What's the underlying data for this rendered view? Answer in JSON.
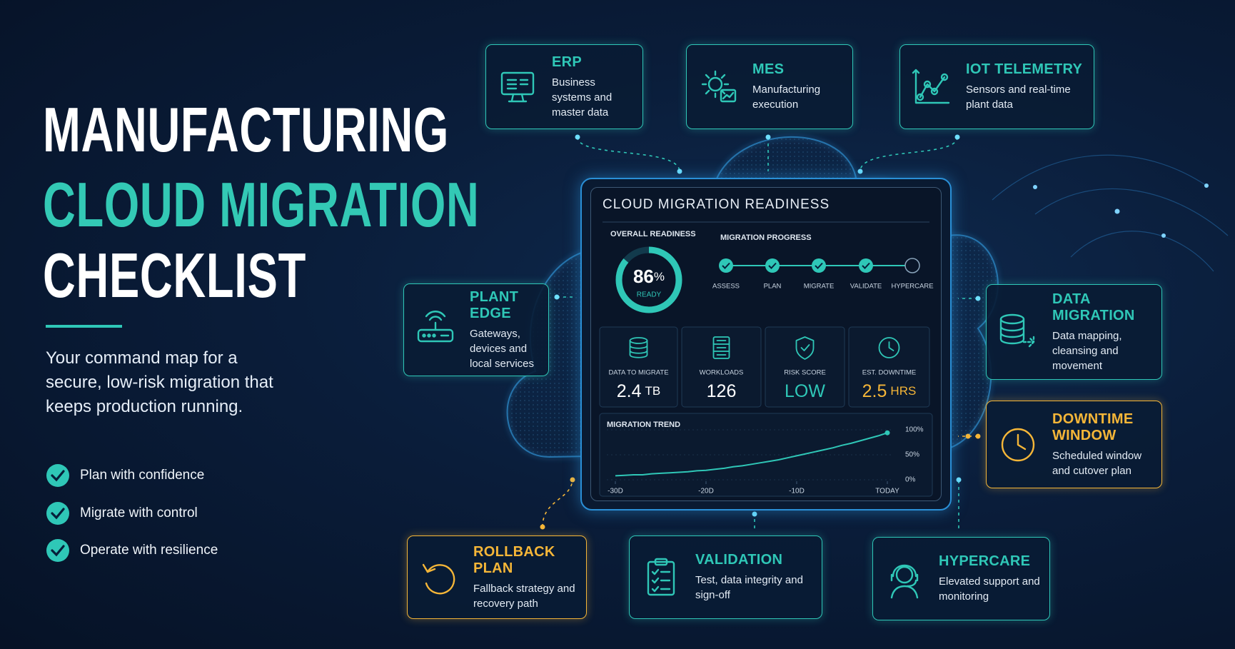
{
  "header": {
    "title_lines": [
      "MANUFACTURING",
      "CLOUD MIGRATION",
      "CHECKLIST"
    ],
    "subtitle": "Your command map for a secure, low-risk migration that keeps production running.",
    "checklist": [
      "Plan with confidence",
      "Migrate with control",
      "Operate with resilience"
    ]
  },
  "cards": [
    {
      "title": "ERP",
      "text": "Business systems and master data",
      "color": "#2fc7b7"
    },
    {
      "title": "MES",
      "text": "Manufacturing execution",
      "color": "#2fc7b7"
    },
    {
      "title": "IOT TELEMETRY",
      "text": "Sensors and real-time plant data",
      "color": "#2fc7b7"
    },
    {
      "title": "PLANT EDGE",
      "text": "Gateways, devices and local services",
      "color": "#2fc7b7"
    },
    {
      "title": "DATA MIGRATION",
      "text": "Data mapping, cleansing and movement",
      "color": "#2fc7b7"
    },
    {
      "title": "DOWNTIME WINDOW",
      "text": "Scheduled window and cutover plan",
      "color": "#f5b638"
    },
    {
      "title": "ROLLBACK PLAN",
      "text": "Fallback strategy and recovery path",
      "color": "#f5b638"
    },
    {
      "title": "VALIDATION",
      "text": "Test, data integrity and sign-off",
      "color": "#2fc7b7"
    },
    {
      "title": "HYPERCARE",
      "text": "Elevated support and monitoring",
      "color": "#2fc7b7"
    }
  ],
  "dashboard": {
    "title": "CLOUD MIGRATION READINESS",
    "readiness": {
      "label": "OVERALL READINESS",
      "value": 86,
      "unit": "%",
      "status": "READY"
    },
    "progress": {
      "label": "MIGRATION PROGRESS",
      "steps": [
        {
          "label": "ASSESS",
          "done": true
        },
        {
          "label": "PLAN",
          "done": true
        },
        {
          "label": "MIGRATE",
          "done": true
        },
        {
          "label": "VALIDATE",
          "done": true
        },
        {
          "label": "HYPERCARE",
          "done": false
        }
      ]
    },
    "metrics": [
      {
        "label": "DATA TO MIGRATE",
        "value": 2.4,
        "unit": "TB",
        "color": "#ffffff"
      },
      {
        "label": "WORKLOADS",
        "value": 126,
        "color": "#ffffff"
      },
      {
        "label": "RISK SCORE",
        "value": "LOW",
        "color": "#2fc7b7"
      },
      {
        "label": "EST. DOWNTIME",
        "value": 2.5,
        "unit": "HRS",
        "color": "#f5b638"
      }
    ],
    "trend": {
      "title": "MIGRATION TREND",
      "x": [
        -30,
        -29,
        -28,
        -27,
        -26,
        -25,
        -24,
        -23,
        -22,
        -21,
        -20,
        -19,
        -18,
        -17,
        -16,
        -15,
        -14,
        -13,
        -12,
        -11,
        -10,
        -9,
        -8,
        -7,
        -6,
        -5,
        -4,
        -3,
        -2,
        -1,
        0
      ],
      "values": [
        8,
        9,
        10,
        10,
        12,
        13,
        14,
        15,
        16,
        18,
        19,
        21,
        23,
        26,
        28,
        31,
        34,
        37,
        40,
        44,
        48,
        52,
        56,
        60,
        64,
        69,
        73,
        78,
        83,
        88,
        94
      ],
      "xlim": [
        -30,
        0
      ],
      "xticks": [
        {
          "value": -30,
          "label": "-30D"
        },
        {
          "value": -20,
          "label": "-20D"
        },
        {
          "value": -10,
          "label": "-10D"
        },
        {
          "value": 0,
          "label": "TODAY"
        }
      ],
      "ylim": [
        0,
        100
      ],
      "yticks": [
        {
          "value": 0,
          "label": "0%"
        },
        {
          "value": 50,
          "label": "50%"
        },
        {
          "value": 100,
          "label": "100%"
        }
      ],
      "color": "#2fc7b7"
    }
  }
}
